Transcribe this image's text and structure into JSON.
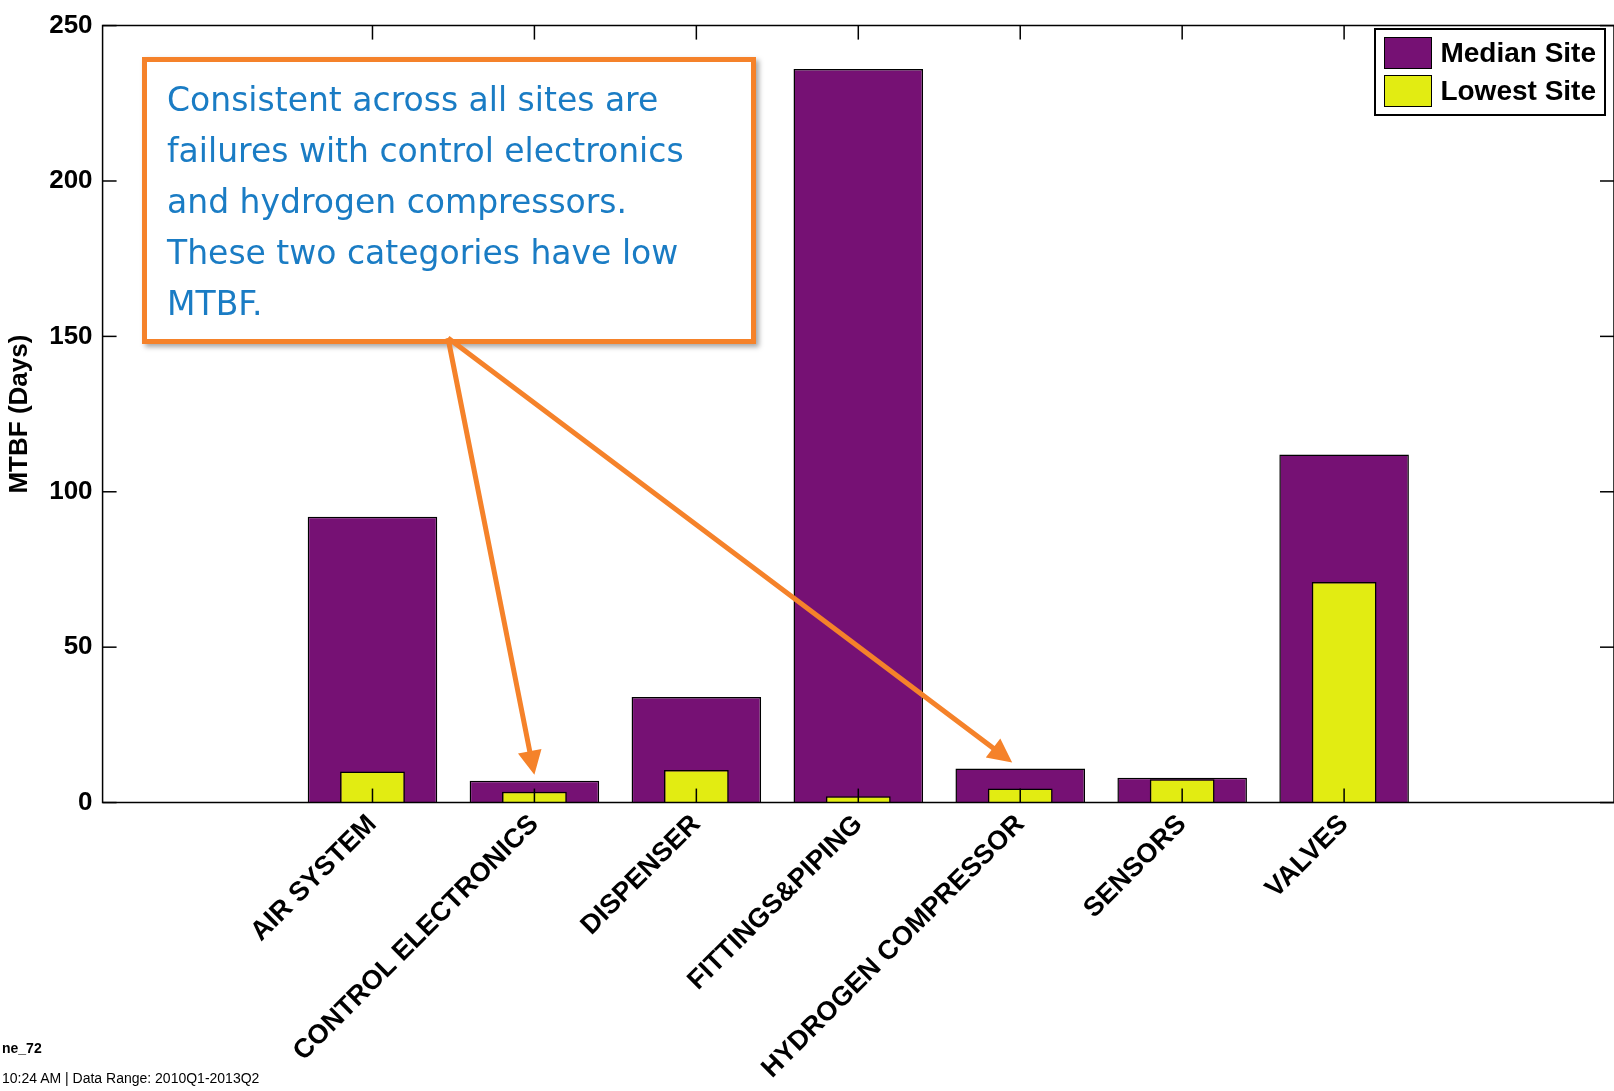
{
  "chart_data": {
    "type": "bar",
    "ylabel": "MTBF (Days)",
    "categories": [
      "AIR SYSTEM",
      "CONTROL ELECTRONICS",
      "DISPENSER",
      "FITTINGS&PIPING",
      "HYDROGEN COMPRESSOR",
      "SENSORS",
      "VALVES"
    ],
    "series": [
      {
        "name": "Median Site",
        "color": "#761174",
        "values": [
          92,
          7,
          34,
          236,
          11,
          8,
          112
        ]
      },
      {
        "name": "Lowest Site",
        "color": "#e2ec12",
        "values": [
          10,
          3.5,
          10.5,
          2,
          4.5,
          7.5,
          71
        ]
      }
    ],
    "ylim": [
      0,
      250
    ],
    "yticks": [
      0,
      50,
      100,
      150,
      200,
      250
    ],
    "grid": false,
    "legend": "top right",
    "annotations": [
      "Consistent across all sites are failures with control electronics and hydrogen compressors. These two categories have low MTBF.",
      "ne_72",
      "10:24 AM | Data Range: 2010Q1-2013Q2"
    ]
  }
}
